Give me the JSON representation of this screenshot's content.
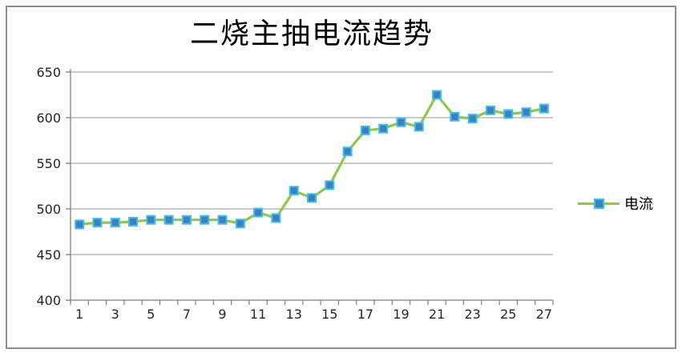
{
  "title": "二烧主抽电流趋势",
  "legend": {
    "label": "电流",
    "position": "right"
  },
  "colors": {
    "line": "#8dc74b",
    "marker_fill": "#3f7fbf",
    "marker_border": "#41beec",
    "gridline": "#acacac",
    "axis": "#7f7f7f",
    "tick_text": "#262626",
    "frame_border": "#8f8f8f",
    "background": "#ffffff"
  },
  "chart_data": {
    "type": "line",
    "title": "二烧主抽电流趋势",
    "xlabel": "",
    "ylabel": "",
    "x": [
      1,
      2,
      3,
      4,
      5,
      6,
      7,
      8,
      9,
      10,
      11,
      12,
      13,
      14,
      15,
      16,
      17,
      18,
      19,
      20,
      21,
      22,
      23,
      24,
      25,
      26,
      27
    ],
    "series": [
      {
        "name": "电流",
        "values": [
          483,
          485,
          485,
          486,
          488,
          488,
          488,
          488,
          488,
          484,
          496,
          490,
          520,
          512,
          526,
          563,
          586,
          588,
          595,
          590,
          625,
          601,
          599,
          608,
          604,
          606,
          610
        ]
      }
    ],
    "ylim": [
      400,
      650
    ],
    "ytick_step": 50,
    "xtick_label_interval": 2,
    "grid": true,
    "legend_position": "right",
    "marker": "square"
  }
}
